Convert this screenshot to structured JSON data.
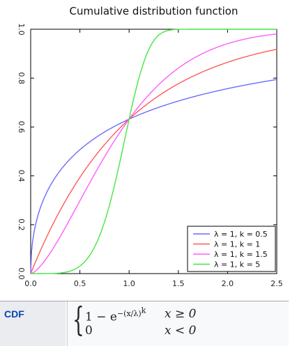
{
  "chart_data": {
    "type": "line",
    "title": "Cumulative distribution function",
    "xlabel": "",
    "ylabel": "",
    "xlim": [
      0,
      2.5
    ],
    "ylim": [
      0,
      1
    ],
    "x_ticks": [
      "0.0",
      "0.5",
      "1.0",
      "1.5",
      "2.0",
      "2.5"
    ],
    "y_ticks": [
      "0.0",
      "0.2",
      "0.4",
      "0.6",
      "0.8",
      "1.0"
    ],
    "grid": false,
    "legend_position": "bottom-right",
    "series": [
      {
        "name": "λ = 1, k = 0.5",
        "lambda": 1,
        "k": 0.5,
        "color": "#6b6bff",
        "x": [
          0,
          0.1,
          0.25,
          0.5,
          0.75,
          1.0,
          1.5,
          2.0,
          2.5
        ],
        "y": [
          0,
          0.271,
          0.393,
          0.507,
          0.579,
          0.632,
          0.706,
          0.757,
          0.794
        ]
      },
      {
        "name": "λ = 1, k = 1",
        "lambda": 1,
        "k": 1,
        "color": "#ff5a5a",
        "x": [
          0,
          0.1,
          0.25,
          0.5,
          0.75,
          1.0,
          1.5,
          2.0,
          2.5
        ],
        "y": [
          0,
          0.095,
          0.221,
          0.393,
          0.528,
          0.632,
          0.777,
          0.865,
          0.918
        ]
      },
      {
        "name": "λ = 1, k = 1.5",
        "lambda": 1,
        "k": 1.5,
        "color": "#ff5cff",
        "x": [
          0,
          0.1,
          0.25,
          0.5,
          0.75,
          1.0,
          1.5,
          2.0,
          2.5
        ],
        "y": [
          0,
          0.031,
          0.118,
          0.298,
          0.478,
          0.632,
          0.841,
          0.941,
          0.981
        ]
      },
      {
        "name": "λ = 1, k = 5",
        "lambda": 1,
        "k": 5,
        "color": "#44e644",
        "x": [
          0,
          0.25,
          0.5,
          0.75,
          1.0,
          1.25,
          1.5,
          2.0,
          2.5
        ],
        "y": [
          0,
          0.001,
          0.031,
          0.211,
          0.632,
          0.953,
          0.9995,
          1.0,
          1.0
        ]
      }
    ]
  },
  "infobox": {
    "label": "CDF",
    "formula_case1": "1 − e",
    "formula_exponent": "−(x/λ)",
    "formula_exponent_k": "k",
    "condition1": "x ≥ 0",
    "formula_case2": "0",
    "condition2": "x < 0"
  }
}
